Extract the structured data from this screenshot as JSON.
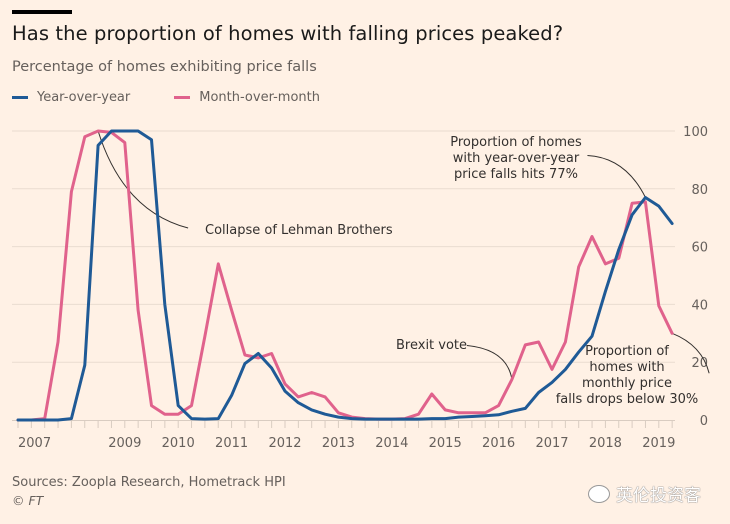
{
  "header": {
    "title": "Has the proportion of homes with falling prices peaked?",
    "subtitle": "Percentage of homes exhibiting price falls"
  },
  "legend": [
    {
      "label": "Year-over-year",
      "color": "#1F5A96"
    },
    {
      "label": "Month-over-month",
      "color": "#E0628C"
    }
  ],
  "chart_data": {
    "type": "line",
    "title": "Has the proportion of homes with falling prices peaked?",
    "subtitle": "Percentage of homes exhibiting price falls",
    "xlabel": "",
    "ylabel": "",
    "x_unit": "quarter",
    "x": [
      "2007Q1",
      "2007Q2",
      "2007Q3",
      "2007Q4",
      "2008Q1",
      "2008Q2",
      "2008Q3",
      "2008Q4",
      "2009Q1",
      "2009Q2",
      "2009Q3",
      "2009Q4",
      "2010Q1",
      "2010Q2",
      "2010Q3",
      "2010Q4",
      "2011Q1",
      "2011Q2",
      "2011Q3",
      "2011Q4",
      "2012Q1",
      "2012Q2",
      "2012Q3",
      "2012Q4",
      "2013Q1",
      "2013Q2",
      "2013Q3",
      "2013Q4",
      "2014Q1",
      "2014Q2",
      "2014Q3",
      "2014Q4",
      "2015Q1",
      "2015Q2",
      "2015Q3",
      "2015Q4",
      "2016Q1",
      "2016Q2",
      "2016Q3",
      "2016Q4",
      "2017Q1",
      "2017Q2",
      "2017Q3",
      "2017Q4",
      "2018Q1",
      "2018Q2",
      "2018Q3",
      "2018Q4",
      "2019Q1",
      "2019Q2"
    ],
    "xtick_labels": [
      {
        "label": "2007",
        "index": 0
      },
      {
        "label": "2009",
        "index": 8
      },
      {
        "label": "2010",
        "index": 12
      },
      {
        "label": "2011",
        "index": 16
      },
      {
        "label": "2012",
        "index": 20
      },
      {
        "label": "2013",
        "index": 24
      },
      {
        "label": "2014",
        "index": 28
      },
      {
        "label": "2015",
        "index": 32
      },
      {
        "label": "2016",
        "index": 36
      },
      {
        "label": "2017",
        "index": 40
      },
      {
        "label": "2018",
        "index": 44
      },
      {
        "label": "2019",
        "index": 48
      }
    ],
    "ylim": [
      0,
      100
    ],
    "yticks": [
      0,
      20,
      40,
      60,
      80,
      100
    ],
    "y_axis_side": "right",
    "grid": true,
    "legend_position": "top-left",
    "series": [
      {
        "name": "Year-over-year",
        "color": "#1F5A96",
        "values": [
          0,
          0,
          0,
          0,
          0.5,
          19,
          95,
          100,
          100,
          100,
          97,
          40,
          5,
          0.5,
          0.3,
          0.5,
          8.5,
          19.5,
          23,
          18,
          10,
          6,
          3.5,
          2,
          1,
          0.5,
          0.3,
          0.3,
          0.3,
          0.3,
          0.3,
          0.5,
          0.5,
          1,
          1.2,
          1.5,
          1.8,
          3,
          4,
          9.5,
          13,
          17.5,
          23.5,
          29,
          44.5,
          59,
          71,
          77,
          74,
          68
        ]
      },
      {
        "name": "Month-over-month",
        "color": "#E0628C",
        "values": [
          0,
          0,
          0.5,
          27,
          79,
          98,
          100,
          99.5,
          96,
          38,
          5,
          2,
          2,
          5,
          29,
          54,
          38,
          22.5,
          21.5,
          23,
          12.5,
          8,
          9.5,
          8,
          2.5,
          1,
          0.5,
          0.3,
          0.3,
          0.5,
          2,
          9,
          3.5,
          2.5,
          2.5,
          2.5,
          5,
          14,
          26,
          27,
          17.5,
          27,
          53,
          63.5,
          54,
          56,
          75,
          75.5,
          39.5,
          30
        ]
      }
    ],
    "annotations": [
      {
        "id": "lehman",
        "lines": [
          "Collapse of Lehman Brothers"
        ],
        "target_index": 6,
        "target_value": 100
      },
      {
        "id": "brexit",
        "lines": [
          "Brexit vote"
        ],
        "target_index": 37,
        "target_value": 14
      },
      {
        "id": "yoy77",
        "lines": [
          "Proportion of homes",
          "with year-over-year",
          "price falls hits 77%"
        ],
        "target_index": 47,
        "target_value": 77
      },
      {
        "id": "mom30",
        "lines": [
          "Proportion of",
          "homes with",
          "monthly price",
          "falls drops below 30%"
        ],
        "target_index": 49,
        "target_value": 30
      }
    ]
  },
  "footer": {
    "source": "Sources: Zoopla Research, Hometrack HPI",
    "copyright": "© FT",
    "watermark": "英伦投资客"
  }
}
